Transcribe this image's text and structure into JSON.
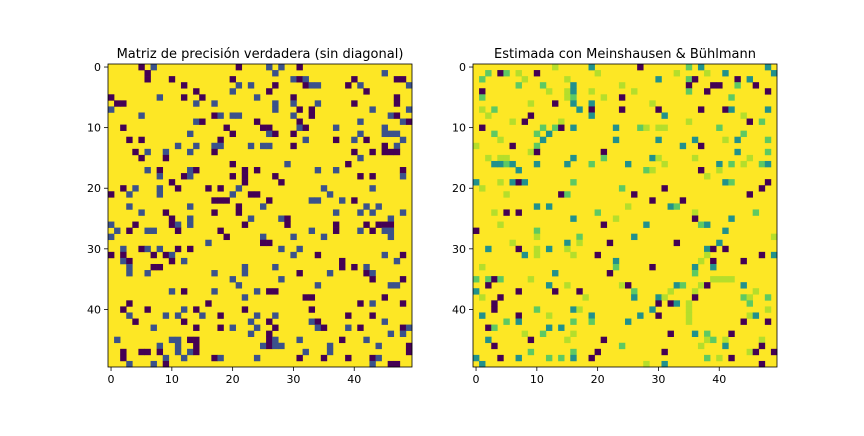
{
  "chart_data": [
    {
      "type": "heatmap",
      "title": "Matriz de precisión verdadera (sin diagonal)",
      "xlabel": "",
      "ylabel": "",
      "size": 50,
      "xticks": [
        0,
        10,
        20,
        30,
        40
      ],
      "yticks": [
        0,
        10,
        20,
        30,
        40
      ],
      "colormap": [
        "#440154",
        "#3b528b",
        "#21918c",
        "#5ec962",
        "#b5de2b",
        "#fde725"
      ],
      "density": 0.14,
      "seed": 7,
      "values_note": "matrix of 50x50; background value = max (yellow); sparse off-diagonal entries shown in dark blue/purple"
    },
    {
      "type": "heatmap",
      "title": "Estimada con Meinshausen & Bühlmann",
      "xlabel": "",
      "ylabel": "",
      "size": 50,
      "xticks": [
        0,
        10,
        20,
        30,
        40
      ],
      "yticks": [
        0,
        10,
        20,
        30,
        40
      ],
      "colormap": [
        "#440154",
        "#3b528b",
        "#21918c",
        "#5ec962",
        "#b5de2b",
        "#fde725"
      ],
      "density": 0.11,
      "seed": 23,
      "values_note": "matrix of 50x50; background value = max (yellow); sparse entries shown in purple/teal/green"
    }
  ]
}
